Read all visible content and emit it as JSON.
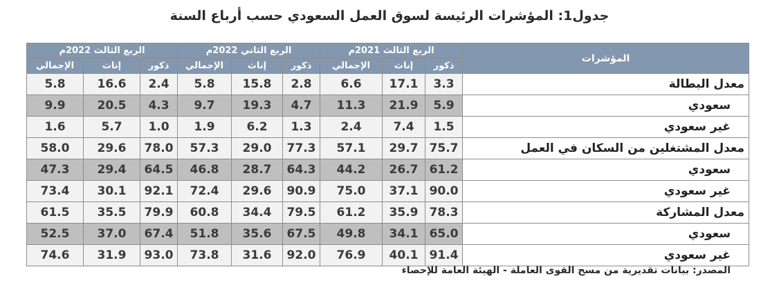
{
  "title": "جدول1: المؤشرات الرئيسة لسوق العمل السعودي حسب أرباع السنة",
  "header": {
    "indicators_label": "المؤشرات",
    "quarters": [
      "الربع الثالث 2022م",
      "الربع الثاني 2022م",
      "الربع الثالث 2021م"
    ],
    "subheaders": [
      "الإجمالي",
      "إناث",
      "ذكور"
    ]
  },
  "rows": [
    {
      "label": "معدل البطالة",
      "values": [
        "5.8",
        "16.6",
        "2.4",
        "5.8",
        "15.8",
        "2.8",
        "6.6",
        "17.1",
        "3.3"
      ]
    },
    {
      "label": "سعودي",
      "values": [
        "9.9",
        "20.5",
        "4.3",
        "9.7",
        "19.3",
        "4.7",
        "11.3",
        "21.9",
        "5.9"
      ]
    },
    {
      "label": "غير سعودي",
      "values": [
        "1.6",
        "5.7",
        "1.0",
        "1.9",
        "6.2",
        "1.3",
        "2.4",
        "7.4",
        "1.5"
      ]
    },
    {
      "label": "معدل المشتغلين من السكان في العمل",
      "values": [
        "58.0",
        "29.6",
        "78.0",
        "57.3",
        "29.0",
        "77.3",
        "57.1",
        "29.7",
        "75.7"
      ]
    },
    {
      "label": "سعودي",
      "values": [
        "47.3",
        "29.4",
        "64.5",
        "46.8",
        "28.7",
        "64.3",
        "44.2",
        "26.7",
        "61.2"
      ]
    },
    {
      "label": "غير سعودي",
      "values": [
        "73.4",
        "30.1",
        "92.1",
        "72.4",
        "29.6",
        "90.9",
        "75.0",
        "37.1",
        "90.0"
      ]
    },
    {
      "label": "معدل المشاركة",
      "values": [
        "61.5",
        "35.5",
        "79.9",
        "60.8",
        "34.4",
        "79.5",
        "61.2",
        "35.9",
        "78.3"
      ]
    },
    {
      "label": "سعودي",
      "values": [
        "52.5",
        "37.0",
        "67.4",
        "51.8",
        "35.6",
        "67.5",
        "49.8",
        "34.1",
        "65.0"
      ]
    },
    {
      "label": "غير سعودي",
      "values": [
        "74.6",
        "31.9",
        "93.0",
        "73.8",
        "31.6",
        "92.0",
        "76.9",
        "40.1",
        "91.4"
      ]
    }
  ],
  "source": "المصدر: بيانات تقديرية من مسح القوى العاملة - الهيئة العامة للإحصاء"
}
